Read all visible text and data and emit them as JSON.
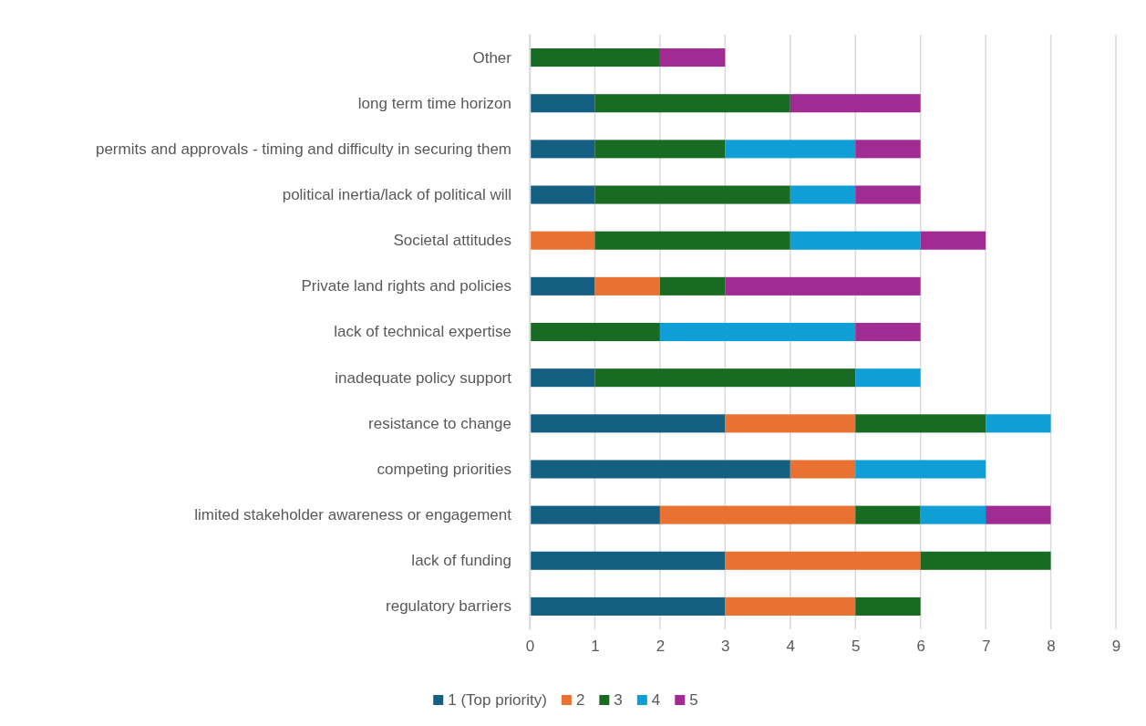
{
  "chart_data": {
    "type": "bar",
    "orientation": "horizontal",
    "stacked": true,
    "categories": [
      "Other",
      "long term time horizon",
      "permits and approvals - timing and difficulty in securing them",
      "political inertia/lack of political will",
      "Societal attitudes",
      "Private land rights and policies",
      "lack of technical expertise",
      "inadequate policy support",
      "resistance to change",
      "competing priorities",
      "limited stakeholder awareness or engagement",
      "lack of funding",
      "regulatory barriers"
    ],
    "series": [
      {
        "name": "1 (Top priority)",
        "color": "#156082",
        "values": [
          null,
          1,
          1,
          1,
          null,
          1,
          null,
          1,
          3,
          4,
          2,
          3,
          3
        ]
      },
      {
        "name": "2",
        "color": "#e97132",
        "values": [
          null,
          null,
          null,
          null,
          1,
          1,
          null,
          null,
          2,
          1,
          3,
          3,
          2
        ]
      },
      {
        "name": "3",
        "color": "#196b24",
        "values": [
          2,
          3,
          2,
          3,
          3,
          1,
          2,
          4,
          2,
          null,
          1,
          2,
          1
        ]
      },
      {
        "name": "4",
        "color": "#0f9ed5",
        "values": [
          null,
          null,
          2,
          1,
          2,
          null,
          3,
          1,
          1,
          2,
          1,
          null,
          null
        ]
      },
      {
        "name": "5",
        "color": "#a02b93",
        "values": [
          1,
          2,
          1,
          1,
          1,
          3,
          1,
          null,
          null,
          null,
          1,
          null,
          null
        ]
      }
    ],
    "xlim": [
      0,
      9
    ],
    "xticks": [
      0,
      1,
      2,
      3,
      4,
      5,
      6,
      7,
      8,
      9
    ],
    "grid": "x",
    "legend": "bottom"
  }
}
